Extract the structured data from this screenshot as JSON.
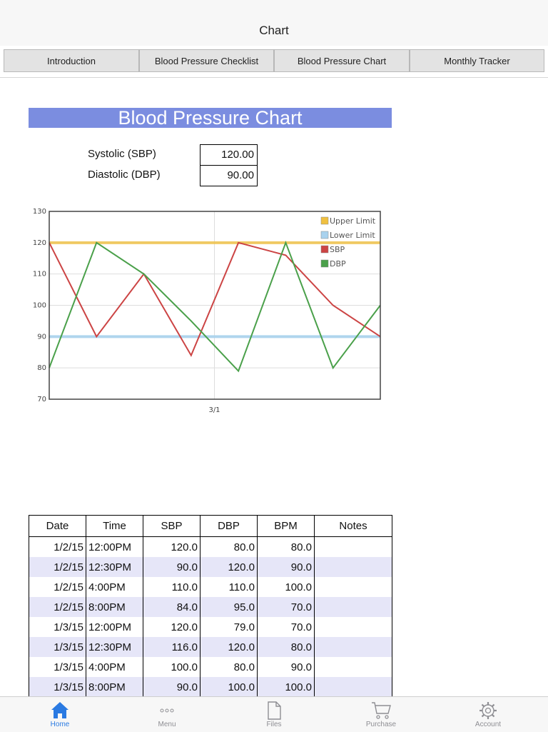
{
  "navbar": {
    "title": "Chart"
  },
  "tabs": [
    "Introduction",
    "Blood Pressure Checklist",
    "Blood Pressure Chart",
    "Monthly Tracker"
  ],
  "banner": "Blood Pressure Chart",
  "inputs": {
    "systolic_label": "Systolic (SBP)",
    "systolic_value": "120.00",
    "diastolic_label": "Diastolic (DBP)",
    "diastolic_value": "90.00"
  },
  "chart_data": {
    "type": "line",
    "y_ticks": [
      "130",
      "120",
      "110",
      "100",
      "90",
      "80",
      "70"
    ],
    "ylim": [
      70,
      130
    ],
    "x_tick_labels": [
      "3/1"
    ],
    "grid": true,
    "legend_position": "top-right",
    "legend": [
      "Upper Limit",
      "Lower Limit",
      "SBP",
      "DBP"
    ],
    "upper_limit": 120,
    "lower_limit": 90,
    "series": [
      {
        "name": "SBP",
        "color": "#cc4444",
        "values": [
          120,
          90,
          110,
          84,
          120,
          116,
          100,
          90
        ]
      },
      {
        "name": "DBP",
        "color": "#4aa04a",
        "values": [
          80,
          120,
          110,
          95,
          79,
          120,
          80,
          100
        ]
      }
    ],
    "upper_color": "#f0c040",
    "lower_color": "#a9d2ee"
  },
  "table": {
    "headers": [
      "Date",
      "Time",
      "SBP",
      "DBP",
      "BPM",
      "Notes"
    ],
    "rows": [
      [
        "1/2/15",
        "12:00PM",
        "120.0",
        "80.0",
        "80.0",
        ""
      ],
      [
        "1/2/15",
        "12:30PM",
        "90.0",
        "120.0",
        "90.0",
        ""
      ],
      [
        "1/2/15",
        "4:00PM",
        "110.0",
        "110.0",
        "100.0",
        ""
      ],
      [
        "1/2/15",
        "8:00PM",
        "84.0",
        "95.0",
        "70.0",
        ""
      ],
      [
        "1/3/15",
        "12:00PM",
        "120.0",
        "79.0",
        "70.0",
        ""
      ],
      [
        "1/3/15",
        "12:30PM",
        "116.0",
        "120.0",
        "80.0",
        ""
      ],
      [
        "1/3/15",
        "4:00PM",
        "100.0",
        "80.0",
        "90.0",
        ""
      ],
      [
        "1/3/15",
        "8:00PM",
        "90.0",
        "100.0",
        "100.0",
        ""
      ]
    ]
  },
  "tabbar": [
    {
      "label": "Home",
      "icon": "home-icon",
      "active": true
    },
    {
      "label": "Menu",
      "icon": "more-icon",
      "active": false
    },
    {
      "label": "Files",
      "icon": "file-icon",
      "active": false
    },
    {
      "label": "Purchase",
      "icon": "cart-icon",
      "active": false
    },
    {
      "label": "Account",
      "icon": "gear-icon",
      "active": false
    }
  ],
  "colors": {
    "banner": "#7b8de0",
    "tab_active": "#2a7ae2",
    "row_alt": "#e6e6f8"
  }
}
